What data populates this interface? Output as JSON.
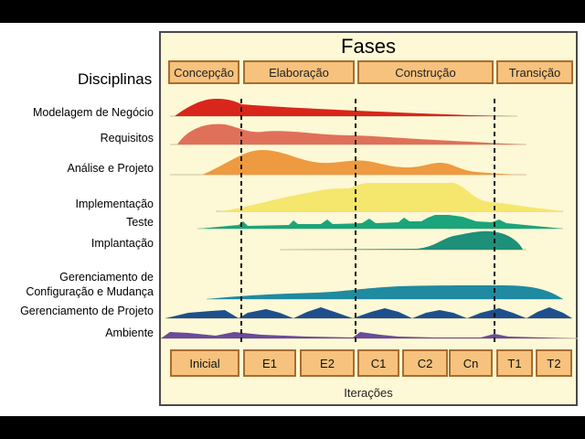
{
  "title": "Fases",
  "disciplines_header": "Disciplinas",
  "phases": [
    "Concepção",
    "Elaboração",
    "Construção",
    "Transição"
  ],
  "disciplines": [
    "Modelagem de Negócio",
    "Requisitos",
    "Análise e Projeto",
    "Implementação",
    "Teste",
    "Implantação",
    "Gerenciamento de\nConfiguração e Mudança",
    "Gerenciamento de Projeto",
    "Ambiente"
  ],
  "iterations": [
    "Inicial",
    "E1",
    "E2",
    "C1",
    "C2",
    "Cn",
    "T1",
    "T2"
  ],
  "iterations_label": "Iterações",
  "colors": {
    "modelagem": "#d9261c",
    "requisitos": "#e0705a",
    "analise": "#ee9a40",
    "implementacao": "#f5e66e",
    "teste": "#1aa57a",
    "implantacao": "#1e8f78",
    "configuracao": "#1f8aa0",
    "projeto": "#1e4f8c",
    "ambiente": "#6a4a9a"
  }
}
